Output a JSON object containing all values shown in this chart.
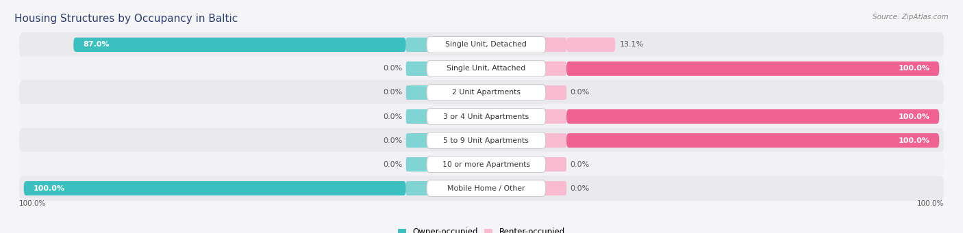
{
  "title": "Housing Structures by Occupancy in Baltic",
  "source": "Source: ZipAtlas.com",
  "categories": [
    "Single Unit, Detached",
    "Single Unit, Attached",
    "2 Unit Apartments",
    "3 or 4 Unit Apartments",
    "5 to 9 Unit Apartments",
    "10 or more Apartments",
    "Mobile Home / Other"
  ],
  "owner_pct": [
    87.0,
    0.0,
    0.0,
    0.0,
    0.0,
    0.0,
    100.0
  ],
  "renter_pct": [
    13.1,
    100.0,
    0.0,
    100.0,
    100.0,
    0.0,
    0.0
  ],
  "owner_color": "#3bbfbf",
  "renter_color_full": "#f06292",
  "renter_color_light": "#f8bbd0",
  "owner_color_stub": "#80d4d4",
  "renter_color_stub": "#f8bbd0",
  "row_bg_even": "#eaeaee",
  "row_bg_odd": "#f2f2f6",
  "fig_bg": "#f5f5f8",
  "title_color": "#2c3e6b",
  "source_color": "#888888",
  "label_color": "#555555",
  "title_fontsize": 11,
  "label_fontsize": 8,
  "cat_fontsize": 7.8,
  "figsize": [
    14.06,
    3.41
  ],
  "dpi": 100,
  "legend_owner": "Owner-occupied",
  "legend_renter": "Renter-occupied"
}
